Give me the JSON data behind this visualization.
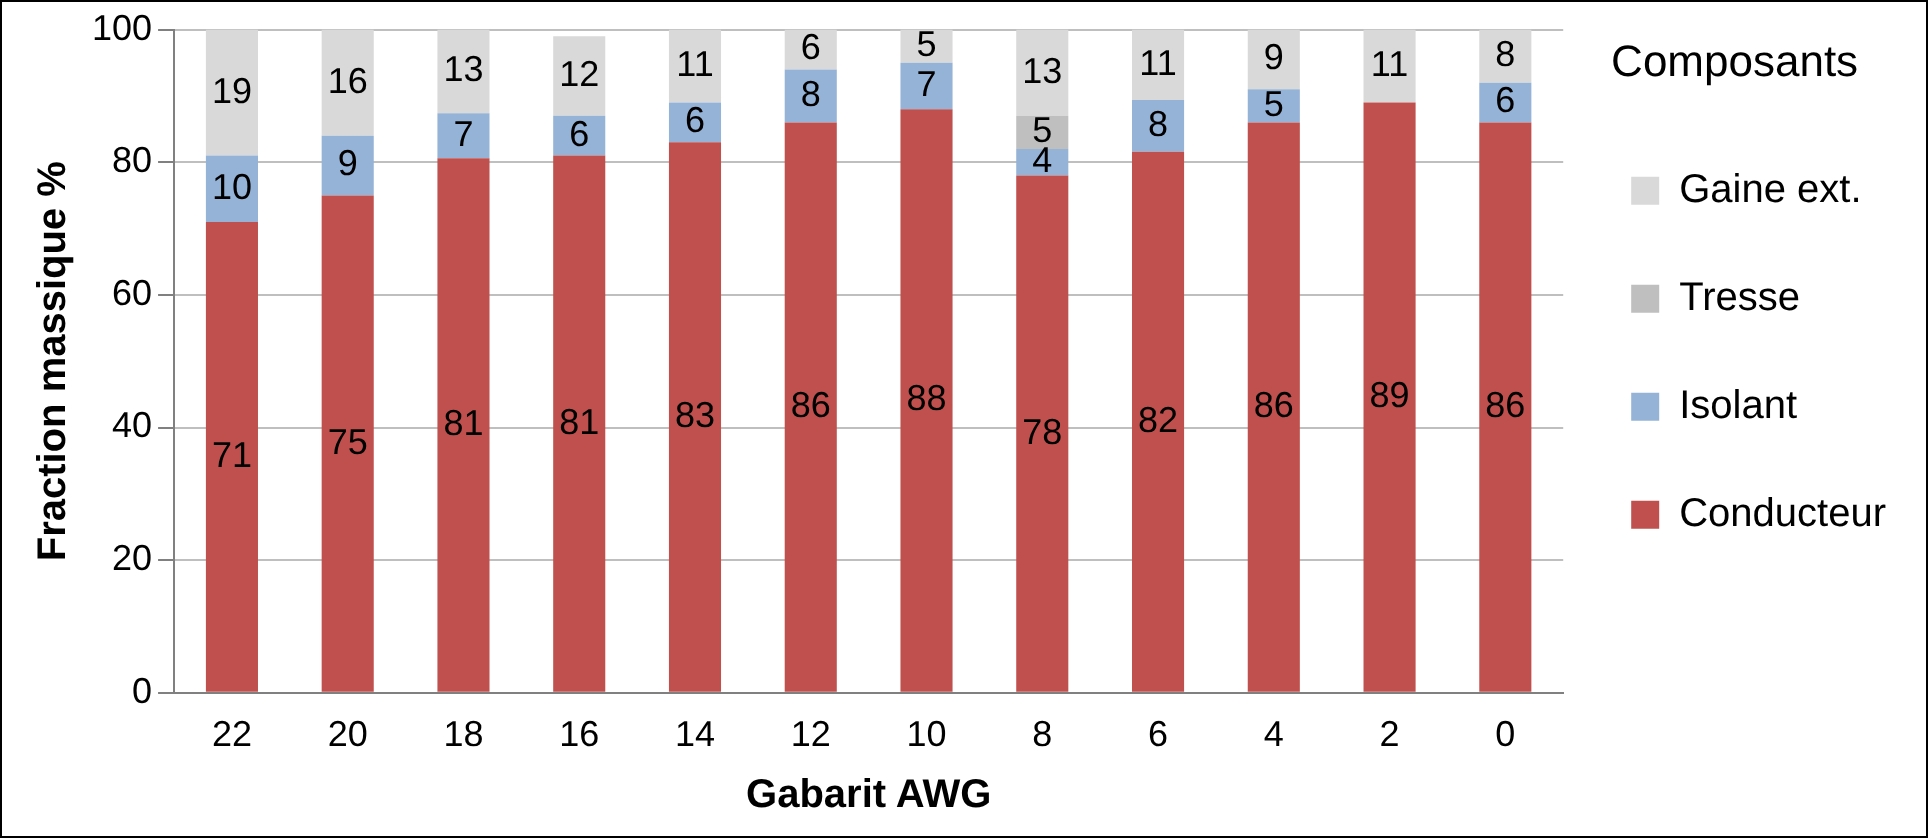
{
  "chart_data": {
    "type": "bar",
    "stacked": true,
    "xlabel": "Gabarit AWG",
    "ylabel": "Fraction massique %",
    "legend_title": "Composants",
    "legend": "right",
    "categories": [
      "22",
      "20",
      "18",
      "16",
      "14",
      "12",
      "10",
      "8",
      "6",
      "4",
      "2",
      "0"
    ],
    "series": [
      {
        "name": "Conducteur",
        "color": "#c0504d",
        "values": [
          71,
          75,
          80.6,
          81,
          83,
          86,
          88,
          78,
          81.6,
          86,
          89,
          86
        ],
        "value_labels": [
          "71",
          "75",
          "81",
          "81",
          "83",
          "86",
          "88",
          "78",
          "82",
          "86",
          "89",
          "86"
        ]
      },
      {
        "name": "Isolant",
        "color": "#95b3d7",
        "values": [
          10,
          9,
          6.8,
          6,
          6,
          8,
          7,
          4,
          7.8,
          5,
          null,
          6
        ],
        "value_labels": [
          "10",
          "9",
          "7",
          "6",
          "6",
          "8",
          "7",
          "4",
          "8",
          "5",
          null,
          "6"
        ]
      },
      {
        "name": "Tresse",
        "color": "#bfbfbf",
        "values": [
          null,
          null,
          null,
          null,
          null,
          null,
          null,
          5,
          null,
          null,
          null,
          null
        ],
        "value_labels": [
          null,
          null,
          null,
          null,
          null,
          null,
          null,
          "5",
          null,
          null,
          null,
          null
        ]
      },
      {
        "name": "Gaine ext.",
        "color": "#d9d9d9",
        "values": [
          19,
          16,
          12.6,
          12,
          11,
          6,
          5,
          13,
          10.6,
          9,
          11,
          8
        ],
        "value_labels": [
          "19",
          "16",
          "13",
          "12",
          "11",
          "6",
          "5",
          "13",
          "11",
          "9",
          "11",
          "8"
        ]
      }
    ],
    "ylim": [
      0,
      100
    ],
    "yticks": [
      0,
      20,
      40,
      60,
      80,
      100
    ],
    "grid": "y"
  }
}
